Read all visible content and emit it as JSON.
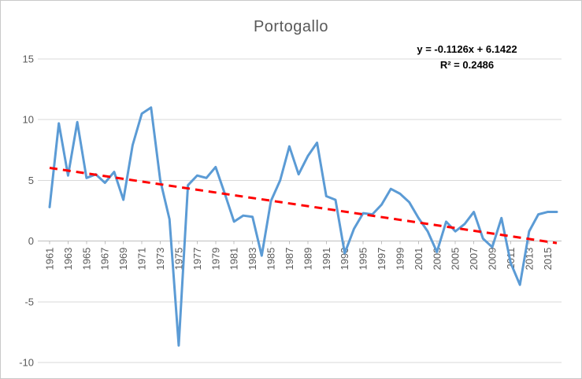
{
  "chart": {
    "background": "#FFFFFF",
    "border_color": "#C9C9C9"
  },
  "chart_data": {
    "type": "line",
    "title": "Portogallo",
    "x": [
      1961,
      1962,
      1963,
      1964,
      1965,
      1966,
      1967,
      1968,
      1969,
      1970,
      1971,
      1972,
      1973,
      1974,
      1975,
      1976,
      1977,
      1978,
      1979,
      1980,
      1981,
      1982,
      1983,
      1984,
      1985,
      1986,
      1987,
      1988,
      1989,
      1990,
      1991,
      1992,
      1993,
      1994,
      1995,
      1996,
      1997,
      1998,
      1999,
      2000,
      2001,
      2002,
      2003,
      2004,
      2005,
      2006,
      2007,
      2008,
      2009,
      2010,
      2011,
      2012,
      2013,
      2014,
      2015,
      2016
    ],
    "series": [
      {
        "name": "Portogallo",
        "color": "#5B9BD5",
        "values": [
          2.8,
          9.7,
          5.4,
          9.8,
          5.2,
          5.5,
          4.8,
          5.7,
          3.4,
          7.9,
          10.5,
          11.0,
          5.0,
          1.8,
          -8.6,
          4.6,
          5.4,
          5.2,
          6.1,
          3.9,
          1.6,
          2.1,
          2.0,
          -1.2,
          3.3,
          5.0,
          7.8,
          5.5,
          7.0,
          8.1,
          3.7,
          3.4,
          -1.0,
          1.0,
          2.3,
          2.2,
          3.0,
          4.3,
          3.9,
          3.2,
          1.9,
          0.8,
          -0.9,
          1.6,
          0.8,
          1.4,
          2.4,
          0.2,
          -0.5,
          1.9,
          -1.8,
          -3.6,
          0.8,
          2.2,
          2.4,
          2.4
        ]
      }
    ],
    "trendline": {
      "equation_text": "y = -0.1126x + 6.1422",
      "r2_text": "R² = 0.2486",
      "slope": -0.1126,
      "intercept": 6.1422,
      "r_squared": 0.2486,
      "color": "#FF0000",
      "style": "dashed"
    },
    "ylim": [
      -10,
      15
    ],
    "yticks": [
      15,
      10,
      5,
      0,
      -5,
      -10
    ],
    "xtick_labels": [
      "1961",
      "1963",
      "1965",
      "1967",
      "1969",
      "1971",
      "1973",
      "1975",
      "1977",
      "1979",
      "1981",
      "1983",
      "1985",
      "1987",
      "1989",
      "1991",
      "1993",
      "1995",
      "1997",
      "1999",
      "2001",
      "2003",
      "2005",
      "2007",
      "2009",
      "2011",
      "2013",
      "2015"
    ],
    "grid": true,
    "legend": "none",
    "axis_text_color": "#595959",
    "gridline_color": "#D9D9D9",
    "axis_line_color": "#BFBFBF",
    "title_color": "#595959"
  }
}
